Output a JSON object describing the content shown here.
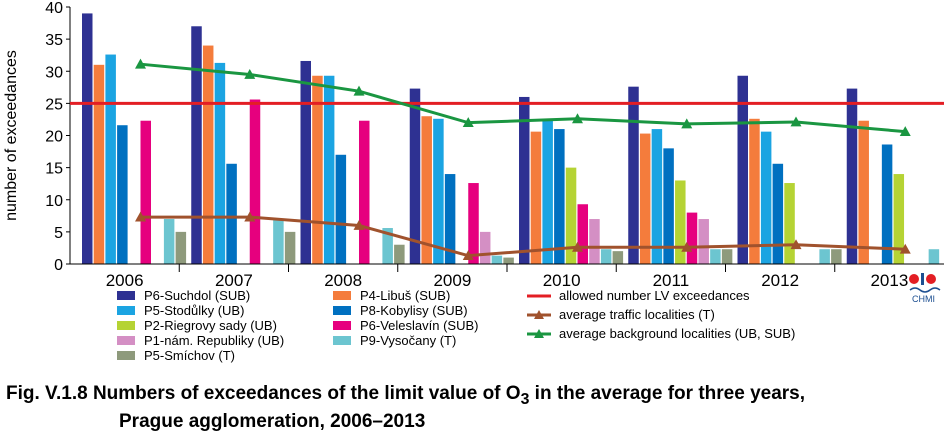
{
  "chart_data": {
    "type": "bar",
    "title": "",
    "ylabel": "number of exceedances",
    "xlabel": "",
    "ylim": [
      0,
      40
    ],
    "yticks": [
      0,
      5,
      10,
      15,
      20,
      25,
      30,
      35,
      40
    ],
    "categories": [
      "2006",
      "2007",
      "2008",
      "2009",
      "2010",
      "2011",
      "2012",
      "2013"
    ],
    "grid": "vertical separators between years",
    "legend_position": "bottom",
    "series": [
      {
        "name": "P6-Suchdol (SUB)",
        "color": "#2e3192",
        "values": [
          39,
          37,
          31.6,
          27.3,
          26,
          27.6,
          29.3,
          27.3
        ]
      },
      {
        "name": "P4-Libuš (SUB)",
        "color": "#f47c3c",
        "values": [
          31,
          34,
          29.3,
          23,
          20.6,
          20.3,
          22.6,
          22.3
        ]
      },
      {
        "name": "P5-Stodůlky (UB)",
        "color": "#1ba4e2",
        "values": [
          32.6,
          31.3,
          29.3,
          22.6,
          22.3,
          21,
          20.6,
          null
        ]
      },
      {
        "name": "P8-Kobylisy (SUB)",
        "color": "#0070c0",
        "values": [
          21.6,
          15.6,
          17,
          14,
          21,
          18,
          15.6,
          18.6
        ]
      },
      {
        "name": "P2-Riegrovy sady (UB)",
        "color": "#b5d334",
        "values": [
          null,
          null,
          null,
          null,
          15,
          13,
          12.6,
          14
        ]
      },
      {
        "name": "P6-Veleslavín (SUB)",
        "color": "#e6007e",
        "values": [
          22.3,
          25.6,
          22.3,
          12.6,
          9.3,
          8,
          null,
          null
        ]
      },
      {
        "name": "P1-nám. Republiky (UB)",
        "color": "#d48fc4",
        "values": [
          null,
          null,
          null,
          5,
          7,
          7,
          null,
          null
        ]
      },
      {
        "name": "P9-Vysočany (T)",
        "color": "#6cc5d0",
        "values": [
          7,
          7,
          5.6,
          1.3,
          2.3,
          2.3,
          2.3,
          2.3
        ]
      },
      {
        "name": "P5-Smíchov (T)",
        "color": "#8e9a7c",
        "values": [
          5,
          5,
          3,
          1,
          2,
          2.3,
          2.3,
          null
        ]
      }
    ],
    "lines": [
      {
        "name": "allowed number LV exceedances",
        "color": "#e31e24",
        "value": 25
      },
      {
        "name": "average traffic localities (T)",
        "color": "#a0522d",
        "marker": "triangle",
        "values": [
          7.3,
          7.3,
          6,
          1.3,
          2.6,
          2.6,
          3,
          2.3
        ]
      },
      {
        "name": "average background localities (UB, SUB)",
        "color": "#1a9641",
        "marker": "triangle",
        "values": [
          31.1,
          29.5,
          26.9,
          22,
          22.6,
          21.8,
          22.1,
          20.6
        ]
      }
    ]
  },
  "legend": {
    "col1": [
      "P6-Suchdol (SUB)",
      "P5-Stodůlky (UB)",
      "P2-Riegrovy sady (UB)",
      "P1-nám. Republiky (UB)",
      "P5-Smíchov (T)"
    ],
    "col2": [
      "P4-Libuš (SUB)",
      "P8-Kobylisy (SUB)",
      "P6-Veleslavín (SUB)",
      "P9-Vysočany (T)"
    ],
    "col3": [
      "allowed number LV exceedances",
      "average traffic localities (T)",
      "average background localities (UB, SUB)"
    ]
  },
  "logo": {
    "text": "CHMI"
  },
  "caption": {
    "line1_pre": "Fig. V.1.8  Numbers of exceedances of the limit value of O",
    "line1_sub": "3",
    "line1_post": " in the average for three years,",
    "line2": "Prague agglomeration, 2006–2013"
  }
}
